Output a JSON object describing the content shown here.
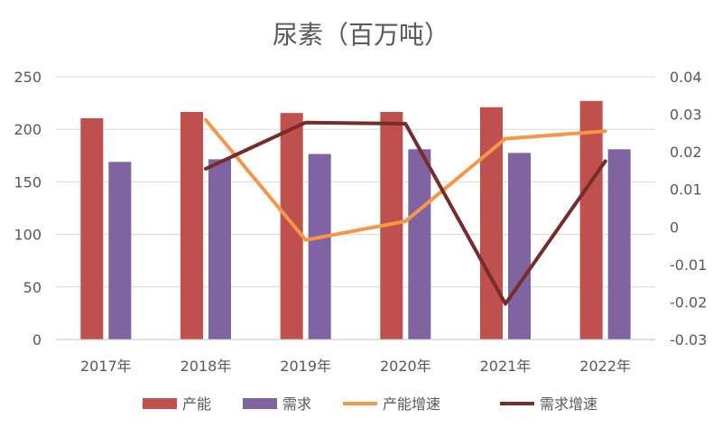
{
  "chart_data": {
    "type": "bar",
    "title": "尿素（百万吨）",
    "categories": [
      "2017年",
      "2018年",
      "2019年",
      "2020年",
      "2021年",
      "2022年"
    ],
    "series": [
      {
        "name": "产能",
        "type": "bar",
        "axis": "left",
        "color": "#C0504D",
        "values": [
          210.5,
          216.5,
          215.5,
          216.5,
          221,
          227
        ]
      },
      {
        "name": "需求",
        "type": "bar",
        "axis": "left",
        "color": "#8064A2",
        "values": [
          169,
          171.5,
          176.5,
          181,
          177.5,
          181
        ]
      },
      {
        "name": "产能增速",
        "type": "line",
        "axis": "right",
        "color": "#F79646",
        "values": [
          null,
          0.0285,
          -0.0035,
          0.0015,
          0.0235,
          0.0255
        ]
      },
      {
        "name": "需求增速",
        "type": "line",
        "axis": "right",
        "color": "#772C2A",
        "values": [
          null,
          0.0155,
          0.0278,
          0.0275,
          -0.0205,
          0.0175
        ]
      }
    ],
    "y_left": {
      "min": 0,
      "max": 250,
      "ticks": [
        "0",
        "50",
        "100",
        "150",
        "200",
        "250"
      ]
    },
    "y_right": {
      "min": -0.03,
      "max": 0.04,
      "ticks": [
        "-0.03",
        "-0.02",
        "-0.01",
        "0",
        "0.01",
        "0.02",
        "0.03",
        "0.04"
      ]
    },
    "grid": true,
    "legend": "bottom"
  }
}
